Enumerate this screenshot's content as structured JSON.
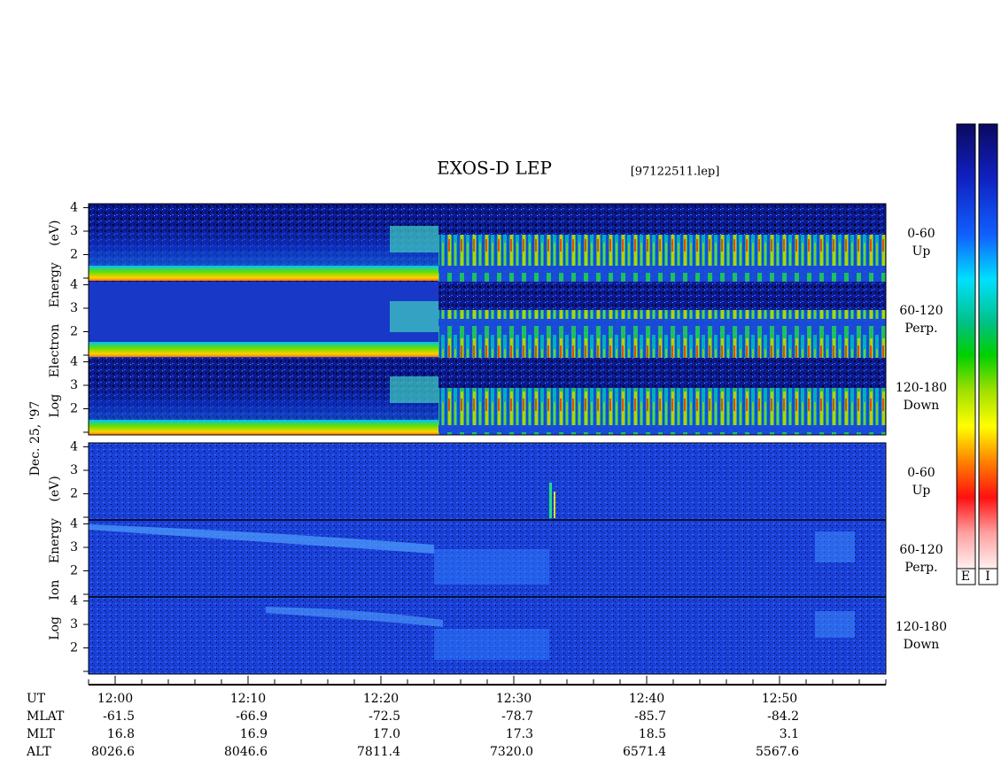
{
  "title": "EXOS-D LEP",
  "file": "[97122511.lep]",
  "date": "Dec. 25, '97",
  "electron": {
    "axis_label": "Log Electron Energy (eV)",
    "panels": [
      {
        "angle": "0-60",
        "direction": "Up"
      },
      {
        "angle": "60-120",
        "direction": "Perp."
      },
      {
        "angle": "120-180",
        "direction": "Down"
      }
    ]
  },
  "ion": {
    "axis_label": "Log Ion Energy (eV)",
    "panels": [
      {
        "angle": "0-60",
        "direction": "Up"
      },
      {
        "angle": "60-120",
        "direction": "Perp."
      },
      {
        "angle": "120-180",
        "direction": "Down"
      }
    ]
  },
  "yticks": [
    2,
    3,
    4
  ],
  "colorbars": [
    "E",
    "I"
  ],
  "table": {
    "rows": [
      {
        "label": "UT",
        "values": [
          "12:00",
          "12:10",
          "12:20",
          "12:30",
          "12:40",
          "12:50"
        ]
      },
      {
        "label": "MLAT",
        "values": [
          "-61.5",
          "-66.9",
          "-72.5",
          "-78.7",
          "-85.7",
          "-84.2"
        ]
      },
      {
        "label": "MLT",
        "values": [
          "16.8",
          "16.9",
          "17.0",
          "17.3",
          "18.5",
          "3.1"
        ]
      },
      {
        "label": "ALT",
        "values": [
          "8026.6",
          "8046.6",
          "7811.4",
          "7320.0",
          "6571.4",
          "5567.6"
        ]
      }
    ]
  }
}
